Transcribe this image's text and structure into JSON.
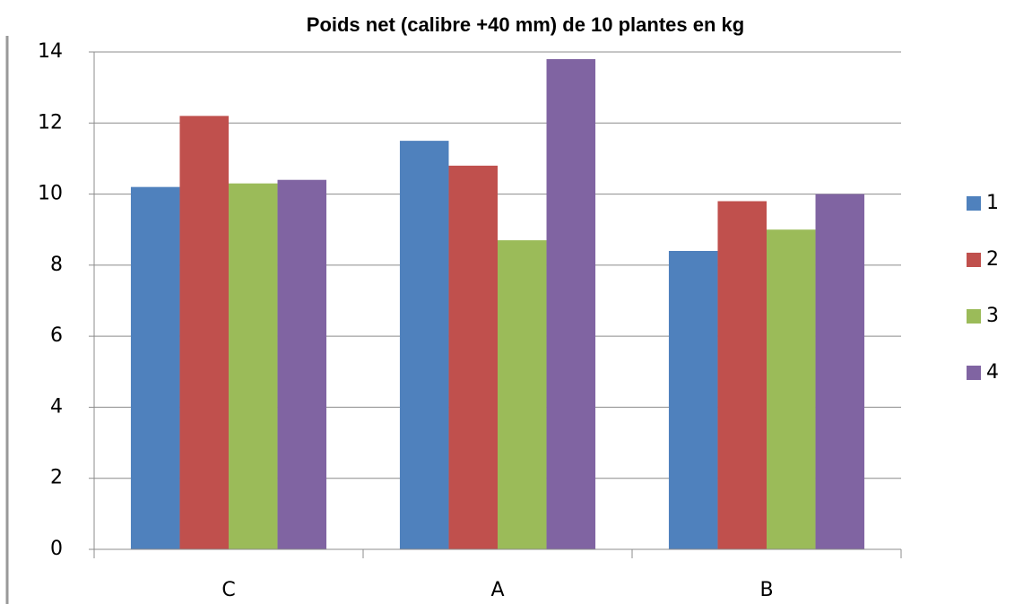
{
  "chart_data": {
    "type": "bar",
    "title": "Poids net (calibre +40 mm) de 10 plantes en kg",
    "categories": [
      "C",
      "A",
      "B"
    ],
    "series": [
      {
        "name": "1",
        "color": "#4f81bd",
        "values": [
          10.2,
          11.5,
          8.4
        ]
      },
      {
        "name": "2",
        "color": "#c0504d",
        "values": [
          12.2,
          10.8,
          9.8
        ]
      },
      {
        "name": "3",
        "color": "#9bbb59",
        "values": [
          10.3,
          8.7,
          9.0
        ]
      },
      {
        "name": "4",
        "color": "#8064a2",
        "values": [
          10.4,
          13.8,
          10.0
        ]
      }
    ],
    "ylim": [
      0,
      14
    ],
    "yticks": [
      0,
      2,
      4,
      6,
      8,
      10,
      12,
      14
    ],
    "grid": true,
    "legend": "right"
  }
}
